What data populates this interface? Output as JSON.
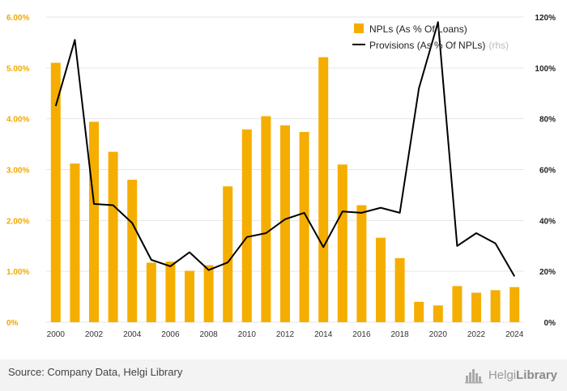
{
  "chart_data": {
    "type": "bar+line",
    "categories": [
      "2000",
      "2001",
      "2002",
      "2003",
      "2004",
      "2005",
      "2006",
      "2007",
      "2008",
      "2009",
      "2010",
      "2011",
      "2012",
      "2013",
      "2014",
      "2015",
      "2016",
      "2017",
      "2018",
      "2019",
      "2020",
      "2021",
      "2022",
      "2023",
      "2024"
    ],
    "x_tick_labels": [
      "2000",
      "2002",
      "2004",
      "2006",
      "2008",
      "2010",
      "2012",
      "2014",
      "2016",
      "2018",
      "2020",
      "2022",
      "2024"
    ],
    "series": [
      {
        "name": "NPLs (As % Of Loans)",
        "type": "bar",
        "axis": "left",
        "color": "#f5ae00",
        "values": [
          5.1,
          3.12,
          3.94,
          3.35,
          2.8,
          1.17,
          1.19,
          1.01,
          1.12,
          2.67,
          3.79,
          4.05,
          3.87,
          3.74,
          5.21,
          3.1,
          2.3,
          1.66,
          1.26,
          0.4,
          0.33,
          0.71,
          0.58,
          0.63,
          0.69
        ]
      },
      {
        "name": "Provisions (As % Of NPLs)",
        "name_suffix": "(rhs)",
        "type": "line",
        "axis": "right",
        "color": "#000000",
        "values": [
          85,
          111,
          46.5,
          46,
          39,
          24.5,
          22,
          27.5,
          20.5,
          23.5,
          33.5,
          35,
          40.5,
          43,
          29.5,
          43.5,
          43,
          45,
          43,
          92,
          118,
          30,
          35,
          31,
          18
        ]
      }
    ],
    "y_left": {
      "min": 0,
      "max": 6,
      "ticks": [
        "0%",
        "1.00%",
        "2.00%",
        "3.00%",
        "4.00%",
        "5.00%",
        "6.00%"
      ]
    },
    "y_right": {
      "min": 0,
      "max": 120,
      "ticks": [
        "0%",
        "20%",
        "40%",
        "60%",
        "80%",
        "100%",
        "120%"
      ]
    },
    "grid": true,
    "legend_position": "top-right"
  },
  "footer": {
    "source": "Source: Company Data, Helgi Library",
    "brand_regular": "Helgi",
    "brand_bold": "Library"
  },
  "colors": {
    "bar": "#f5ae00",
    "line": "#000000",
    "left_axis": "#f0a800",
    "grid": "#e6e6e6"
  }
}
